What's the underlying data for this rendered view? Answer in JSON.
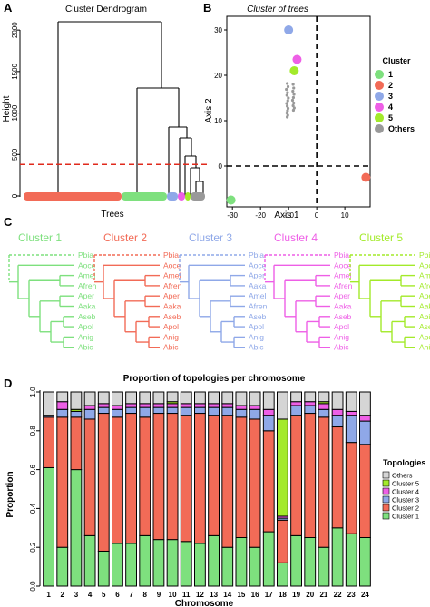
{
  "panels": {
    "A": {
      "letter": "A",
      "title": "Cluster Dendrogram",
      "ylabel": "Height",
      "xlabel": "Trees",
      "yticks": [
        "0",
        "500",
        "1000",
        "1500",
        "2000"
      ],
      "cut_height": 380,
      "ylim": [
        0,
        2100
      ],
      "leaf_segments": [
        {
          "cluster": "2",
          "fraction": 0.54
        },
        {
          "cluster": "1",
          "fraction": 0.25
        },
        {
          "cluster": "3",
          "fraction": 0.06
        },
        {
          "cluster": "4",
          "fraction": 0.04
        },
        {
          "cluster": "5",
          "fraction": 0.03
        },
        {
          "cluster": "Others",
          "fraction": 0.08
        }
      ]
    },
    "B": {
      "letter": "B",
      "title": "Cluster of trees",
      "xlabel": "Axis 1",
      "ylabel": "Axis 2",
      "xticks": [
        "-30",
        "-20",
        "-10",
        "0",
        "10"
      ],
      "yticks": [
        "0",
        "10",
        "20",
        "30"
      ],
      "legend_title": "Cluster",
      "legend": [
        {
          "label": "1",
          "color": "#7ee07e"
        },
        {
          "label": "2",
          "color": "#f26b57"
        },
        {
          "label": "3",
          "color": "#8fa8e8"
        },
        {
          "label": "4",
          "color": "#ee5fe6"
        },
        {
          "label": "5",
          "color": "#a3ea2a"
        },
        {
          "label": "Others",
          "color": "#999999"
        }
      ]
    },
    "C": {
      "letter": "C",
      "taxa": [
        "Pbia",
        "Aoce",
        "Amel",
        "Afren",
        "Aper",
        "Aaka",
        "Aseb",
        "Apol",
        "Anig",
        "Abic"
      ],
      "clusters": [
        {
          "title": "Cluster 1",
          "color": "#7ee07e",
          "leaves": [
            "Pbia",
            "Aoce",
            "Amel",
            "Afren",
            "Aper",
            "Aaka",
            "Aseb",
            "Apol",
            "Anig",
            "Abic"
          ]
        },
        {
          "title": "Cluster 2",
          "color": "#f26b57",
          "leaves": [
            "Pbia",
            "Aoce",
            "Amel",
            "Afren",
            "Aper",
            "Aaka",
            "Aseb",
            "Apol",
            "Anig",
            "Abic"
          ]
        },
        {
          "title": "Cluster 3",
          "color": "#8fa8e8",
          "leaves": [
            "Pbia",
            "Aoce",
            "Aper",
            "Aaka",
            "Amel",
            "Afren",
            "Aseb",
            "Apol",
            "Anig",
            "Abic"
          ]
        },
        {
          "title": "Cluster 4",
          "color": "#ee5fe6",
          "leaves": [
            "Pbia",
            "Aoce",
            "Amel",
            "Afren",
            "Aper",
            "Aaka",
            "Aseb",
            "Apol",
            "Anig",
            "Abic"
          ]
        },
        {
          "title": "Cluster 5",
          "color": "#a3ea2a",
          "leaves": [
            "Pbia",
            "Aoce",
            "Amel",
            "Afren",
            "Aper",
            "Aaka",
            "Abic",
            "Aseb",
            "Apol",
            "Anig"
          ]
        }
      ]
    },
    "D": {
      "letter": "D",
      "title": "Proportion of topologies per chromosome",
      "legend_title": "Topologies",
      "legend_labels": [
        "Others",
        "Cluster 5",
        "Cluster 4",
        "Cluster 3",
        "Cluster 2",
        "Cluster 1"
      ]
    }
  },
  "chart_data": [
    {
      "type": "scatter",
      "title": "Cluster of trees",
      "xlabel": "Axis 1",
      "ylabel": "Axis 2",
      "xlim": [
        -32,
        19
      ],
      "ylim": [
        -9,
        33
      ],
      "series": [
        {
          "name": "1",
          "x": [
            -30.5
          ],
          "y": [
            -7.5
          ]
        },
        {
          "name": "2",
          "x": [
            17.5
          ],
          "y": [
            -2.5
          ]
        },
        {
          "name": "3",
          "x": [
            -10
          ],
          "y": [
            30
          ]
        },
        {
          "name": "4",
          "x": [
            -7
          ],
          "y": [
            23.5
          ]
        },
        {
          "name": "5",
          "x": [
            -8
          ],
          "y": [
            21
          ]
        },
        {
          "name": "Others",
          "x": [
            -10.5,
            -10.2,
            -10.8,
            -10.4,
            -10.6,
            -10.1,
            -10.3,
            -10.7,
            -10.5,
            -10.2,
            -10.4,
            -10.6,
            -10.3,
            -10.5,
            -8.4,
            -8.2,
            -8.5,
            -8.1,
            -8.3,
            -8.6,
            -8.2,
            -8.4,
            -8.0,
            -8.3
          ],
          "y": [
            18.2,
            17.5,
            16.9,
            16.2,
            15.6,
            15.0,
            14.4,
            13.8,
            13.2,
            12.7,
            12.2,
            11.7,
            11.2,
            10.8,
            18.0,
            17.2,
            16.5,
            15.8,
            15.1,
            14.5,
            13.9,
            13.3,
            12.8,
            12.3
          ]
        }
      ]
    },
    {
      "type": "bar",
      "title": "Proportion of topologies per chromosome",
      "xlabel": "Chromosome",
      "ylabel": "Proportion",
      "ylim": [
        0,
        1
      ],
      "yticks": [
        "0.0",
        "0.2",
        "0.4",
        "0.6",
        "0.8",
        "1.0"
      ],
      "stacked": true,
      "categories": [
        "1",
        "2",
        "3",
        "4",
        "5",
        "6",
        "7",
        "8",
        "9",
        "10",
        "11",
        "12",
        "13",
        "14",
        "15",
        "16",
        "17",
        "18",
        "19",
        "20",
        "21",
        "22",
        "23",
        "24"
      ],
      "series": [
        {
          "name": "Cluster 1",
          "color": "#7ee07e",
          "values": [
            0.61,
            0.2,
            0.6,
            0.26,
            0.18,
            0.22,
            0.22,
            0.26,
            0.24,
            0.24,
            0.23,
            0.22,
            0.26,
            0.2,
            0.25,
            0.2,
            0.28,
            0.12,
            0.26,
            0.25,
            0.2,
            0.3,
            0.27,
            0.25
          ]
        },
        {
          "name": "Cluster 2",
          "color": "#f26b57",
          "values": [
            0.26,
            0.67,
            0.27,
            0.6,
            0.71,
            0.65,
            0.67,
            0.61,
            0.65,
            0.65,
            0.65,
            0.67,
            0.62,
            0.68,
            0.62,
            0.66,
            0.52,
            0.22,
            0.62,
            0.64,
            0.67,
            0.52,
            0.47,
            0.48
          ]
        },
        {
          "name": "Cluster 3",
          "color": "#8fa8e8",
          "values": [
            0.01,
            0.04,
            0.03,
            0.05,
            0.03,
            0.04,
            0.03,
            0.05,
            0.03,
            0.03,
            0.04,
            0.03,
            0.04,
            0.04,
            0.04,
            0.05,
            0.08,
            0.01,
            0.05,
            0.04,
            0.04,
            0.06,
            0.14,
            0.12
          ]
        },
        {
          "name": "Cluster 4",
          "color": "#ee5fe6",
          "values": [
            0.0,
            0.04,
            0.0,
            0.02,
            0.02,
            0.02,
            0.02,
            0.02,
            0.02,
            0.02,
            0.02,
            0.02,
            0.02,
            0.02,
            0.02,
            0.02,
            0.03,
            0.01,
            0.02,
            0.02,
            0.03,
            0.03,
            0.02,
            0.03
          ]
        },
        {
          "name": "Cluster 5",
          "color": "#a3ea2a",
          "values": [
            0.0,
            0.0,
            0.01,
            0.0,
            0.0,
            0.0,
            0.0,
            0.0,
            0.0,
            0.01,
            0.0,
            0.0,
            0.0,
            0.0,
            0.0,
            0.0,
            0.0,
            0.5,
            0.0,
            0.0,
            0.01,
            0.0,
            0.0,
            0.0
          ]
        },
        {
          "name": "Others",
          "color": "#d5d5d5",
          "values": [
            0.12,
            0.05,
            0.09,
            0.07,
            0.06,
            0.07,
            0.06,
            0.06,
            0.06,
            0.05,
            0.06,
            0.06,
            0.06,
            0.06,
            0.07,
            0.07,
            0.09,
            0.14,
            0.05,
            0.05,
            0.05,
            0.09,
            0.1,
            0.12
          ]
        }
      ]
    }
  ]
}
